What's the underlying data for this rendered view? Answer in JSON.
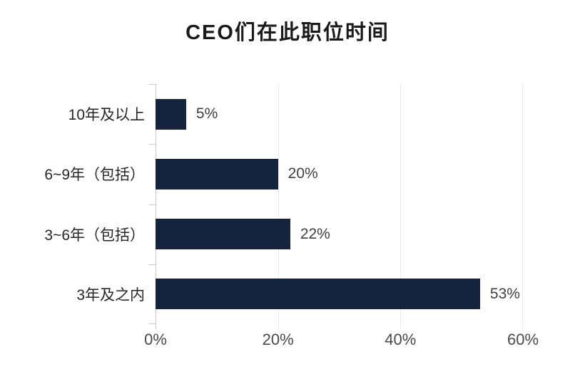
{
  "title": "CEO们在此职位时间",
  "colors": {
    "bar": "#15233d",
    "axis": "#c9c9c9",
    "gridline": "#ececec",
    "title_text": "#1a1a1a",
    "category_text": "#262626",
    "value_text": "#3f3f3f",
    "tick_text": "#4a4a4a",
    "background": "#ffffff"
  },
  "chart_data": {
    "type": "bar",
    "orientation": "horizontal",
    "title": "CEO们在此职位时间",
    "categories": [
      "10年及以上",
      "6~9年（包括）",
      "3~6年（包括）",
      "3年及之内"
    ],
    "values": [
      5,
      20,
      22,
      53
    ],
    "data_labels": [
      "5%",
      "20%",
      "22%",
      "53%"
    ],
    "x_ticks": [
      "0%",
      "20%",
      "40%",
      "60%"
    ],
    "x_tick_values": [
      0,
      20,
      40,
      60
    ],
    "xlim": [
      0,
      60
    ],
    "xlabel": "",
    "ylabel": "",
    "grid": "vertical gridlines at 20%, 40%, 60%",
    "legend": "none"
  }
}
